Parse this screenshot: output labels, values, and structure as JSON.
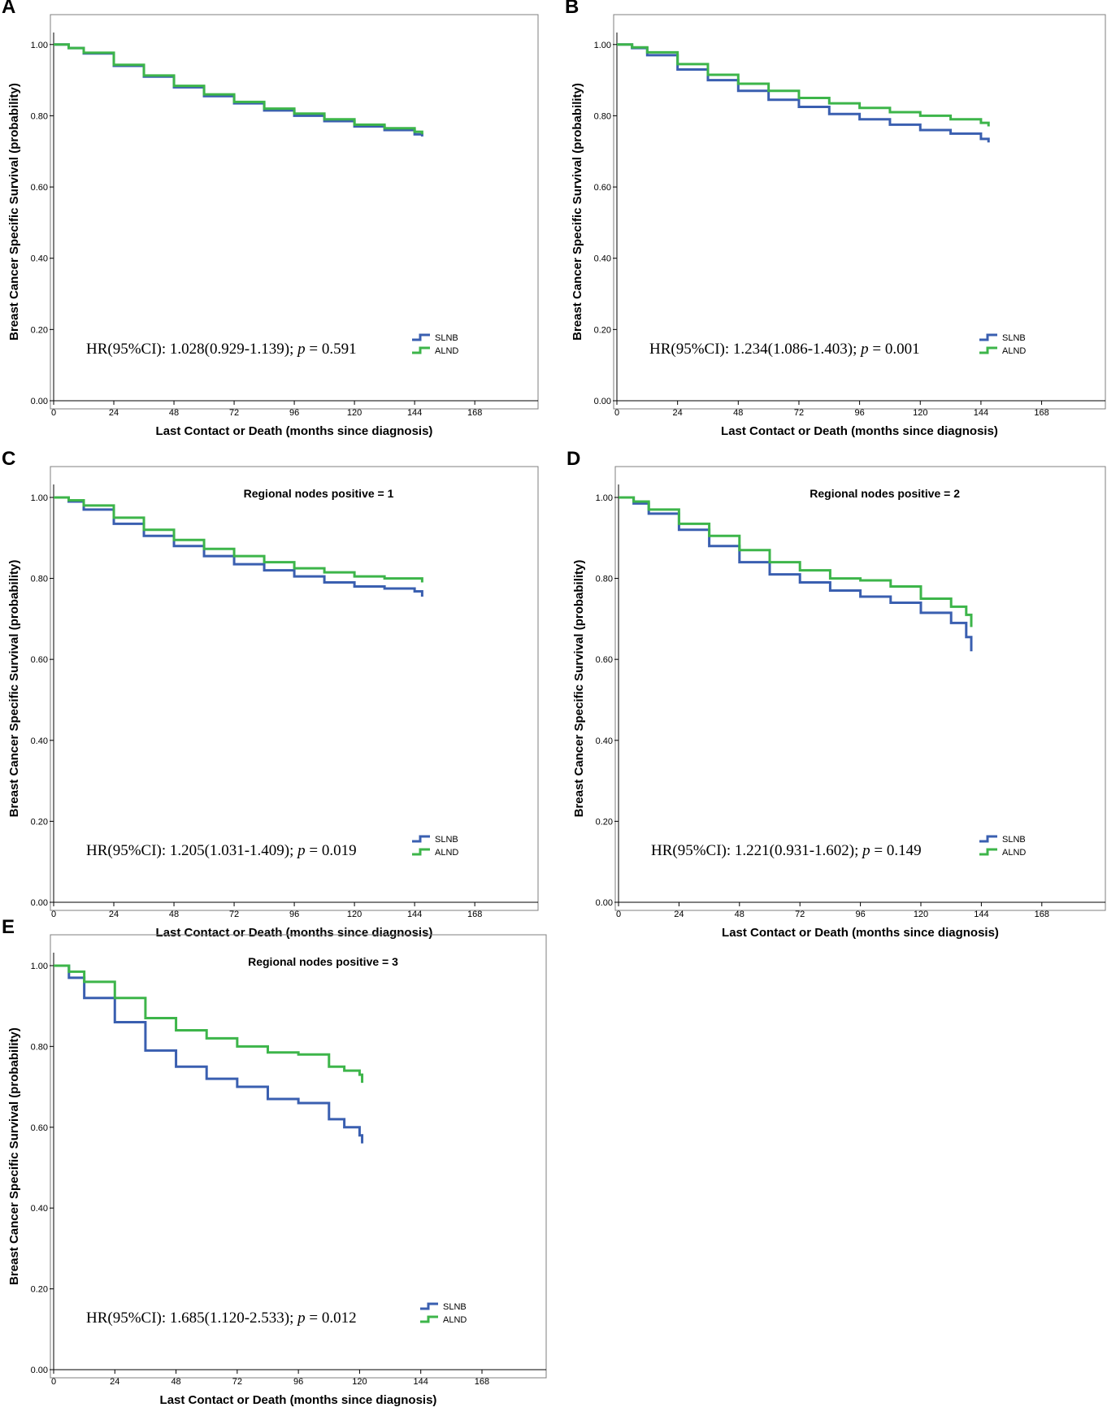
{
  "chart_data": [
    {
      "type": "line",
      "panel_label": "A",
      "subtitle": "",
      "xlabel": "Last Contact or Death (months since diagnosis)",
      "ylabel": "Breast Cancer Specific Survival (probability)",
      "xlim": [
        0,
        190
      ],
      "ylim": [
        0,
        1.02
      ],
      "xticks": [
        "0",
        "24",
        "48",
        "72",
        "96",
        "120",
        "144",
        "168"
      ],
      "yticks": [
        "0.00",
        "0.20",
        "0.40",
        "0.60",
        "0.80",
        "1.00"
      ],
      "annotation": {
        "prefix": "HR(95%CI): 1.028(0.929-1.139); ",
        "p_symbol": "p",
        "p_value": " = 0.591"
      },
      "legend": [
        "SLNB",
        "ALND"
      ],
      "series": [
        {
          "name": "SLNB",
          "color": "#3a5fb0",
          "x": [
            0,
            6,
            12,
            24,
            36,
            48,
            60,
            72,
            84,
            96,
            108,
            120,
            132,
            144,
            147
          ],
          "y": [
            1.0,
            0.99,
            0.975,
            0.94,
            0.91,
            0.88,
            0.855,
            0.835,
            0.815,
            0.8,
            0.785,
            0.77,
            0.76,
            0.748,
            0.742
          ]
        },
        {
          "name": "ALND",
          "color": "#3db54a",
          "x": [
            0,
            6,
            12,
            24,
            36,
            48,
            60,
            72,
            84,
            96,
            108,
            120,
            132,
            144,
            147
          ],
          "y": [
            1.0,
            0.99,
            0.977,
            0.943,
            0.913,
            0.884,
            0.86,
            0.839,
            0.82,
            0.806,
            0.79,
            0.775,
            0.765,
            0.755,
            0.748
          ]
        }
      ]
    },
    {
      "type": "line",
      "panel_label": "B",
      "subtitle": "",
      "xlabel": "Last Contact or Death (months since diagnosis)",
      "ylabel": "Breast Cancer Specific Survival (probability)",
      "xlim": [
        0,
        190
      ],
      "ylim": [
        0,
        1.02
      ],
      "xticks": [
        "0",
        "24",
        "48",
        "72",
        "96",
        "120",
        "144",
        "168"
      ],
      "yticks": [
        "0.00",
        "0.20",
        "0.40",
        "0.60",
        "0.80",
        "1.00"
      ],
      "annotation": {
        "prefix": "HR(95%CI): 1.234(1.086-1.403); ",
        "p_symbol": "p",
        "p_value": " = 0.001"
      },
      "legend": [
        "SLNB",
        "ALND"
      ],
      "series": [
        {
          "name": "SLNB",
          "color": "#3a5fb0",
          "x": [
            0,
            6,
            12,
            24,
            36,
            48,
            60,
            72,
            84,
            96,
            108,
            120,
            132,
            144,
            147
          ],
          "y": [
            1.0,
            0.99,
            0.97,
            0.93,
            0.9,
            0.87,
            0.845,
            0.825,
            0.805,
            0.79,
            0.775,
            0.76,
            0.75,
            0.735,
            0.725
          ]
        },
        {
          "name": "ALND",
          "color": "#3db54a",
          "x": [
            0,
            6,
            12,
            24,
            36,
            48,
            60,
            72,
            84,
            96,
            108,
            120,
            132,
            144,
            147
          ],
          "y": [
            1.0,
            0.992,
            0.978,
            0.945,
            0.915,
            0.89,
            0.87,
            0.85,
            0.835,
            0.822,
            0.81,
            0.8,
            0.79,
            0.78,
            0.77
          ]
        }
      ]
    },
    {
      "type": "line",
      "panel_label": "C",
      "subtitle": "Regional nodes positive = 1",
      "xlabel": "Last Contact or Death (months since diagnosis)",
      "ylabel": "Breast Cancer Specific Survival (probability)",
      "xlim": [
        0,
        190
      ],
      "ylim": [
        0,
        1.02
      ],
      "xticks": [
        "0",
        "24",
        "48",
        "72",
        "96",
        "120",
        "144",
        "168"
      ],
      "yticks": [
        "0.00",
        "0.20",
        "0.40",
        "0.60",
        "0.80",
        "1.00"
      ],
      "annotation": {
        "prefix": "HR(95%CI): 1.205(1.031-1.409); ",
        "p_symbol": "p",
        "p_value": " = 0.019"
      },
      "legend": [
        "SLNB",
        "ALND"
      ],
      "series": [
        {
          "name": "SLNB",
          "color": "#3a5fb0",
          "x": [
            0,
            6,
            12,
            24,
            36,
            48,
            60,
            72,
            84,
            96,
            108,
            120,
            132,
            144,
            147
          ],
          "y": [
            1.0,
            0.99,
            0.97,
            0.935,
            0.905,
            0.88,
            0.855,
            0.835,
            0.82,
            0.805,
            0.79,
            0.78,
            0.775,
            0.768,
            0.755
          ]
        },
        {
          "name": "ALND",
          "color": "#3db54a",
          "x": [
            0,
            6,
            12,
            24,
            36,
            48,
            60,
            72,
            84,
            96,
            108,
            120,
            132,
            144,
            147
          ],
          "y": [
            1.0,
            0.993,
            0.98,
            0.95,
            0.92,
            0.895,
            0.873,
            0.855,
            0.84,
            0.825,
            0.815,
            0.805,
            0.8,
            0.8,
            0.79
          ]
        }
      ]
    },
    {
      "type": "line",
      "panel_label": "D",
      "subtitle": "Regional nodes positive = 2",
      "xlabel": "Last Contact or Death (months since diagnosis)",
      "ylabel": "Breast Cancer Specific Survival (probability)",
      "xlim": [
        0,
        190
      ],
      "ylim": [
        0,
        1.02
      ],
      "xticks": [
        "0",
        "24",
        "48",
        "72",
        "96",
        "120",
        "144",
        "168"
      ],
      "yticks": [
        "0.00",
        "0.20",
        "0.40",
        "0.60",
        "0.80",
        "1.00"
      ],
      "annotation": {
        "prefix": "HR(95%CI): 1.221(0.931-1.602); ",
        "p_symbol": "p",
        "p_value": " = 0.149"
      },
      "legend": [
        "SLNB",
        "ALND"
      ],
      "series": [
        {
          "name": "SLNB",
          "color": "#3a5fb0",
          "x": [
            0,
            6,
            12,
            24,
            36,
            48,
            60,
            72,
            84,
            96,
            108,
            120,
            132,
            138,
            140
          ],
          "y": [
            1.0,
            0.985,
            0.96,
            0.92,
            0.88,
            0.84,
            0.81,
            0.79,
            0.77,
            0.755,
            0.74,
            0.715,
            0.69,
            0.655,
            0.62
          ]
        },
        {
          "name": "ALND",
          "color": "#3db54a",
          "x": [
            0,
            6,
            12,
            24,
            36,
            48,
            60,
            72,
            84,
            96,
            108,
            120,
            132,
            138,
            140
          ],
          "y": [
            1.0,
            0.99,
            0.97,
            0.935,
            0.905,
            0.87,
            0.84,
            0.82,
            0.8,
            0.795,
            0.78,
            0.75,
            0.73,
            0.71,
            0.68
          ]
        }
      ]
    },
    {
      "type": "line",
      "panel_label": "E",
      "subtitle": "Regional nodes positive = 3",
      "xlabel": "Last Contact or Death (months since diagnosis)",
      "ylabel": "Breast Cancer Specific Survival (probability)",
      "xlim": [
        0,
        190
      ],
      "ylim": [
        0,
        1.02
      ],
      "xticks": [
        "0",
        "24",
        "48",
        "72",
        "96",
        "120",
        "144",
        "168"
      ],
      "yticks": [
        "0.00",
        "0.20",
        "0.40",
        "0.60",
        "0.80",
        "1.00"
      ],
      "annotation": {
        "prefix": "HR(95%CI): 1.685(1.120-2.533); ",
        "p_symbol": "p",
        "p_value": " = 0.012"
      },
      "legend": [
        "SLNB",
        "ALND"
      ],
      "series": [
        {
          "name": "SLNB",
          "color": "#3a5fb0",
          "x": [
            0,
            6,
            12,
            24,
            36,
            48,
            60,
            72,
            84,
            96,
            108,
            114,
            120,
            121
          ],
          "y": [
            1.0,
            0.97,
            0.92,
            0.86,
            0.79,
            0.75,
            0.72,
            0.7,
            0.67,
            0.66,
            0.62,
            0.6,
            0.58,
            0.56
          ]
        },
        {
          "name": "ALND",
          "color": "#3db54a",
          "x": [
            0,
            6,
            12,
            24,
            36,
            48,
            60,
            72,
            84,
            96,
            108,
            114,
            120,
            121
          ],
          "y": [
            1.0,
            0.985,
            0.96,
            0.92,
            0.87,
            0.84,
            0.82,
            0.8,
            0.785,
            0.78,
            0.75,
            0.74,
            0.73,
            0.71
          ]
        }
      ]
    }
  ]
}
